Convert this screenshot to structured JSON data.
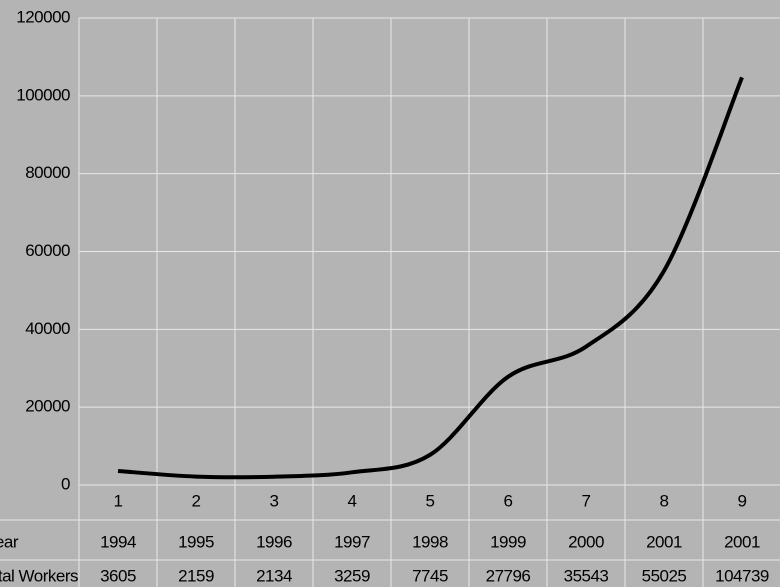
{
  "chart_data": {
    "type": "line",
    "categories": [
      "1",
      "2",
      "3",
      "4",
      "5",
      "6",
      "7",
      "8",
      "9"
    ],
    "row_labels": [
      "Year",
      "Total Workers"
    ],
    "years": [
      "1994",
      "1995",
      "1996",
      "1997",
      "1998",
      "1999",
      "2000",
      "2001",
      "2001"
    ],
    "series": [
      {
        "name": "Total Workers",
        "color": "#000000",
        "values": [
          3605,
          2159,
          2134,
          3259,
          7745,
          27796,
          35543,
          55025,
          104739
        ]
      }
    ],
    "ylim": [
      0,
      120000
    ],
    "yticks": [
      0,
      20000,
      40000,
      60000,
      80000,
      100000,
      120000
    ],
    "grid": true
  }
}
